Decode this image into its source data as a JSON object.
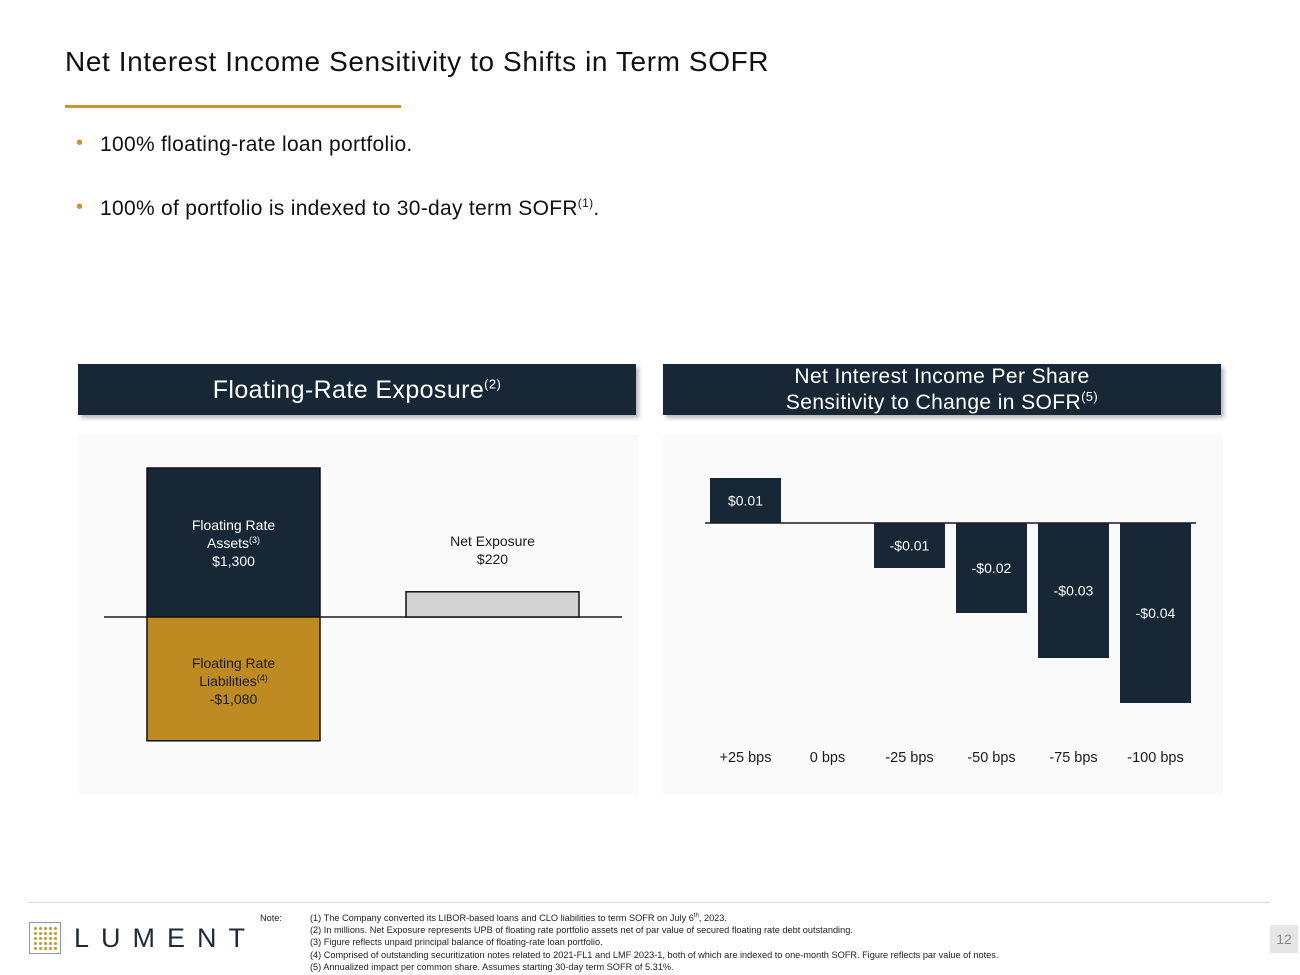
{
  "page": {
    "title": "Net Interest Income Sensitivity to Shifts in Term SOFR",
    "page_number": "12"
  },
  "colors": {
    "navy": "#172736",
    "gold": "#be8a22",
    "gray_bar": "#d3d3d3",
    "accent_rule": "#c4972f"
  },
  "bullets": [
    {
      "text": "100% floating-rate loan portfolio.",
      "sup": ""
    },
    {
      "text": "100% of portfolio is indexed to 30-day term SOFR",
      "sup": "(1)",
      "suffix": "."
    }
  ],
  "panels": {
    "left": {
      "title": "Floating-Rate Exposure",
      "sup": "(2)"
    },
    "right": {
      "title_line1": "Net Interest Income Per Share",
      "title_line2": "Sensitivity to Change in SOFR",
      "sup": "(5)"
    }
  },
  "chart_data": [
    {
      "type": "bar",
      "bars": [
        {
          "label_line1": "Floating Rate",
          "label_line2": "Assets",
          "sup": "(3)",
          "value_label": "$1,300",
          "value": 1300,
          "color": "navy"
        },
        {
          "label_line1": "Floating Rate",
          "label_line2": "Liabilities",
          "sup": "(4)",
          "value_label": "-$1,080",
          "value": -1080,
          "color": "gold"
        },
        {
          "label_line1": "Net Exposure",
          "value_label": "$220",
          "value": 220,
          "color": "gray_bar"
        }
      ]
    },
    {
      "type": "bar",
      "categories": [
        "+25 bps",
        "0 bps",
        "-25 bps",
        "-50 bps",
        "-75 bps",
        "-100 bps"
      ],
      "values": [
        0.01,
        0,
        -0.01,
        -0.02,
        -0.03,
        -0.04
      ],
      "value_labels": [
        "$0.01",
        "",
        "-$0.01",
        "-$0.02",
        "-$0.03",
        "-$0.04"
      ]
    }
  ],
  "footer": {
    "logo_text": "LUMENT",
    "note_label": "Note:",
    "notes": [
      {
        "text": "(1) The Company converted its LIBOR-based loans and CLO liabilities to term SOFR on July 6",
        "sup": "th",
        "suffix": ", 2023."
      },
      {
        "text": "(2) In millions. Net Exposure represents UPB of floating rate portfolio assets net of par value of secured floating rate debt outstanding."
      },
      {
        "text": "(3) Figure reflects unpaid principal balance of floating-rate loan portfolio."
      },
      {
        "text": "(4) Comprised of outstanding securitization notes related to 2021-FL1 and LMF 2023-1, both of which are indexed to one-month SOFR. Figure reflects par value of notes."
      },
      {
        "text": "(5) Annualized impact per common share. Assumes starting 30-day term SOFR of 5.31%."
      }
    ]
  }
}
